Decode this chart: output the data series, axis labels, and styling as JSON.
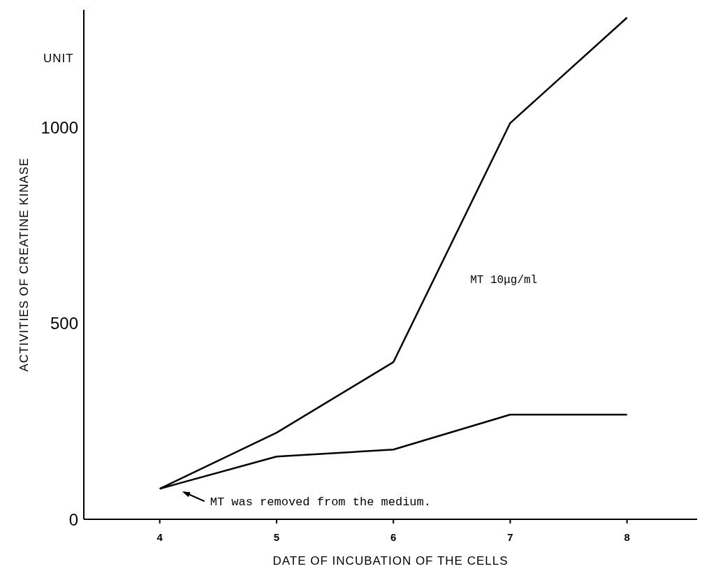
{
  "chart_data": {
    "type": "line",
    "xlabel": "DATE OF INCUBATION OF THE CELLS",
    "ylabel": "ACTIVITIES OF CREATINE KINASE",
    "x": [
      4,
      5,
      6,
      7,
      8
    ],
    "series": [
      {
        "name": "MT 10μg/ml",
        "color": "#000000",
        "values": [
          78,
          221,
          401,
          1011,
          1280
        ]
      },
      {
        "color": "#000000",
        "values": [
          78,
          160,
          178,
          267,
          267
        ]
      }
    ],
    "annotations": [
      "UNIT",
      "MT was removed from the medium."
    ],
    "xlim": [
      3.35,
      8.6
    ],
    "xticks": [
      4,
      5,
      6,
      7,
      8
    ],
    "ylim": [
      0,
      1300
    ],
    "yticks": [
      0,
      500,
      1000
    ],
    "marker": "none",
    "line_style": "solid"
  }
}
